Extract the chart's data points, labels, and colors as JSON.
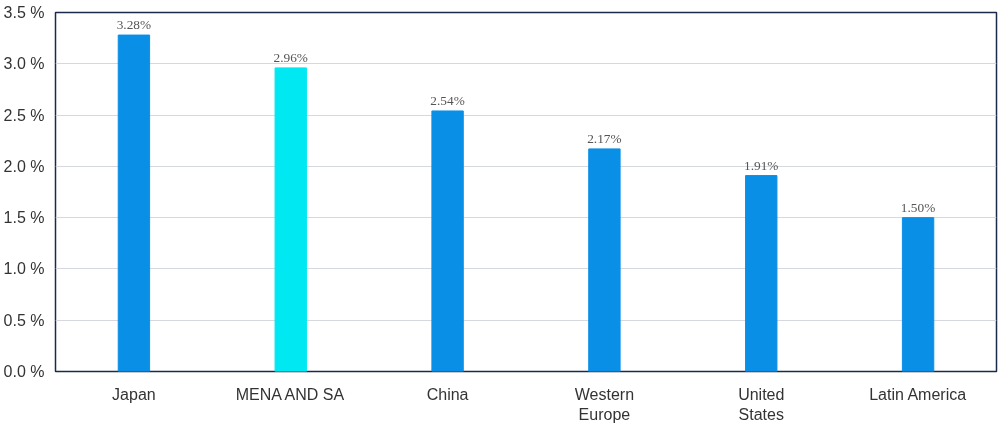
{
  "chart_data": {
    "type": "bar",
    "categories": [
      "Japan",
      "MENA AND SA",
      "China",
      "Western\nEurope",
      "United\nStates",
      "Latin America"
    ],
    "values": [
      3.28,
      2.96,
      2.54,
      2.17,
      1.91,
      1.5
    ],
    "colors": [
      "#0a8fe6",
      "#00e8f2",
      "#0a8fe6",
      "#0a8fe6",
      "#0a8fe6",
      "#0a8fe6"
    ],
    "value_labels": [
      "3.28%",
      "2.96%",
      "2.54%",
      "2.17%",
      "1.91%",
      "1.50%"
    ],
    "ylim": [
      0,
      3.5
    ],
    "yticks": [
      {
        "value": 0,
        "label": "0.0 %"
      },
      {
        "value": 0.5,
        "label": "0.5 %"
      },
      {
        "value": 1.0,
        "label": "1.0 %"
      },
      {
        "value": 1.5,
        "label": "1.5 %"
      },
      {
        "value": 2.0,
        "label": "2.0 %"
      },
      {
        "value": 2.5,
        "label": "2.5 %"
      },
      {
        "value": 3.0,
        "label": "3.0 %"
      },
      {
        "value": 3.5,
        "label": "3.5 %"
      }
    ],
    "grid": "y"
  }
}
